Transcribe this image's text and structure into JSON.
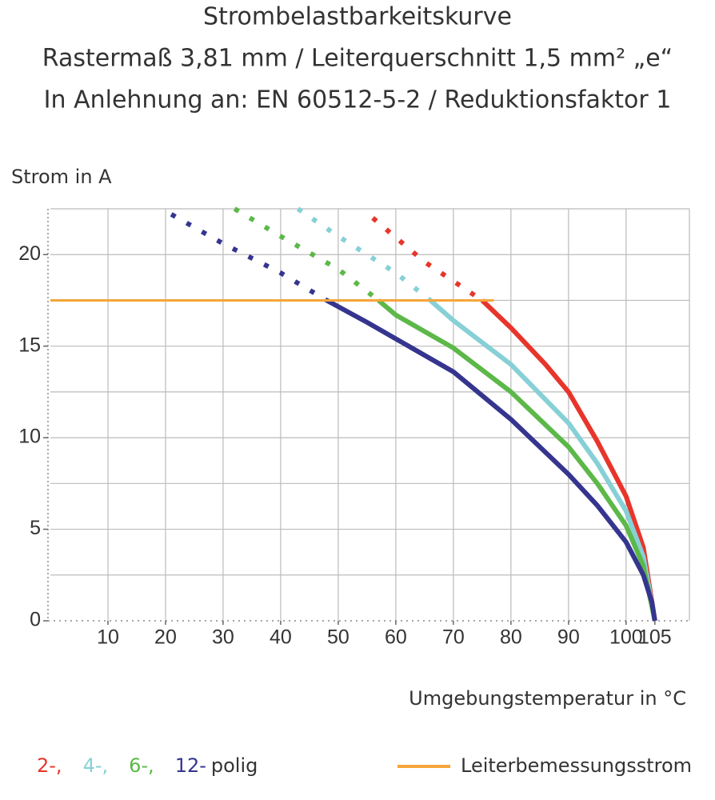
{
  "chart_data": {
    "type": "line",
    "title": "Strombelastbarkeitskurve",
    "subtitle": [
      "Rastermaß 3,81 mm / Leiterquerschnitt 1,5 mm² „e“",
      "In Anlehnung an: EN 60512-5-2 / Reduktionsfaktor 1"
    ],
    "y_label": "Strom in A",
    "x_label": "Umgebungstemperatur in  °C",
    "xlim": [
      0,
      111
    ],
    "ylim": [
      0,
      22.5
    ],
    "xticks": [
      10,
      20,
      30,
      40,
      50,
      60,
      70,
      80,
      90,
      100,
      105
    ],
    "yticks": [
      0,
      5,
      10,
      15,
      20
    ],
    "xgrid": [
      10,
      20,
      30,
      40,
      50,
      60,
      70,
      80,
      90,
      100
    ],
    "ygrid": [
      2.5,
      5,
      7.5,
      10,
      12.5,
      15,
      17.5,
      20,
      22.5
    ],
    "grid": true,
    "series": [
      {
        "name": "2-,",
        "color": "#e8352b",
        "x": [
          56,
          65,
          75,
          80,
          86,
          90,
          95,
          100,
          103,
          105
        ],
        "values": [
          22,
          19.6,
          17.5,
          16,
          14,
          12.5,
          9.8,
          6.8,
          4,
          0
        ]
      },
      {
        "name": "4-,",
        "color": "#86d0d6",
        "x": [
          43,
          50,
          60,
          66,
          70,
          80,
          90,
          95,
          100,
          103,
          105
        ],
        "values": [
          22.5,
          21,
          19,
          17.5,
          16.4,
          14,
          10.8,
          8.6,
          6,
          3.5,
          0
        ]
      },
      {
        "name": "6-,",
        "color": "#5cb848",
        "x": [
          32,
          40,
          50,
          57,
          60,
          70,
          80,
          90,
          95,
          100,
          103,
          105
        ],
        "values": [
          22.5,
          21,
          19.2,
          17.5,
          16.7,
          14.9,
          12.5,
          9.5,
          7.5,
          5.2,
          3,
          0
        ]
      },
      {
        "name": "12-",
        "color": "#35358f",
        "x": [
          21,
          30,
          40,
          48,
          55,
          60,
          70,
          80,
          90,
          95,
          100,
          103,
          104.5,
          105
        ],
        "values": [
          22.2,
          20.6,
          19,
          17.5,
          16.3,
          15.4,
          13.6,
          11,
          8,
          6.3,
          4.3,
          2.5,
          1,
          0
        ]
      }
    ],
    "legend_suffix": "polig",
    "reference_line": {
      "name": "Leiterbemessungsstrom",
      "color": "#f5a53a",
      "value": 17.5,
      "x": [
        0,
        77
      ]
    }
  }
}
